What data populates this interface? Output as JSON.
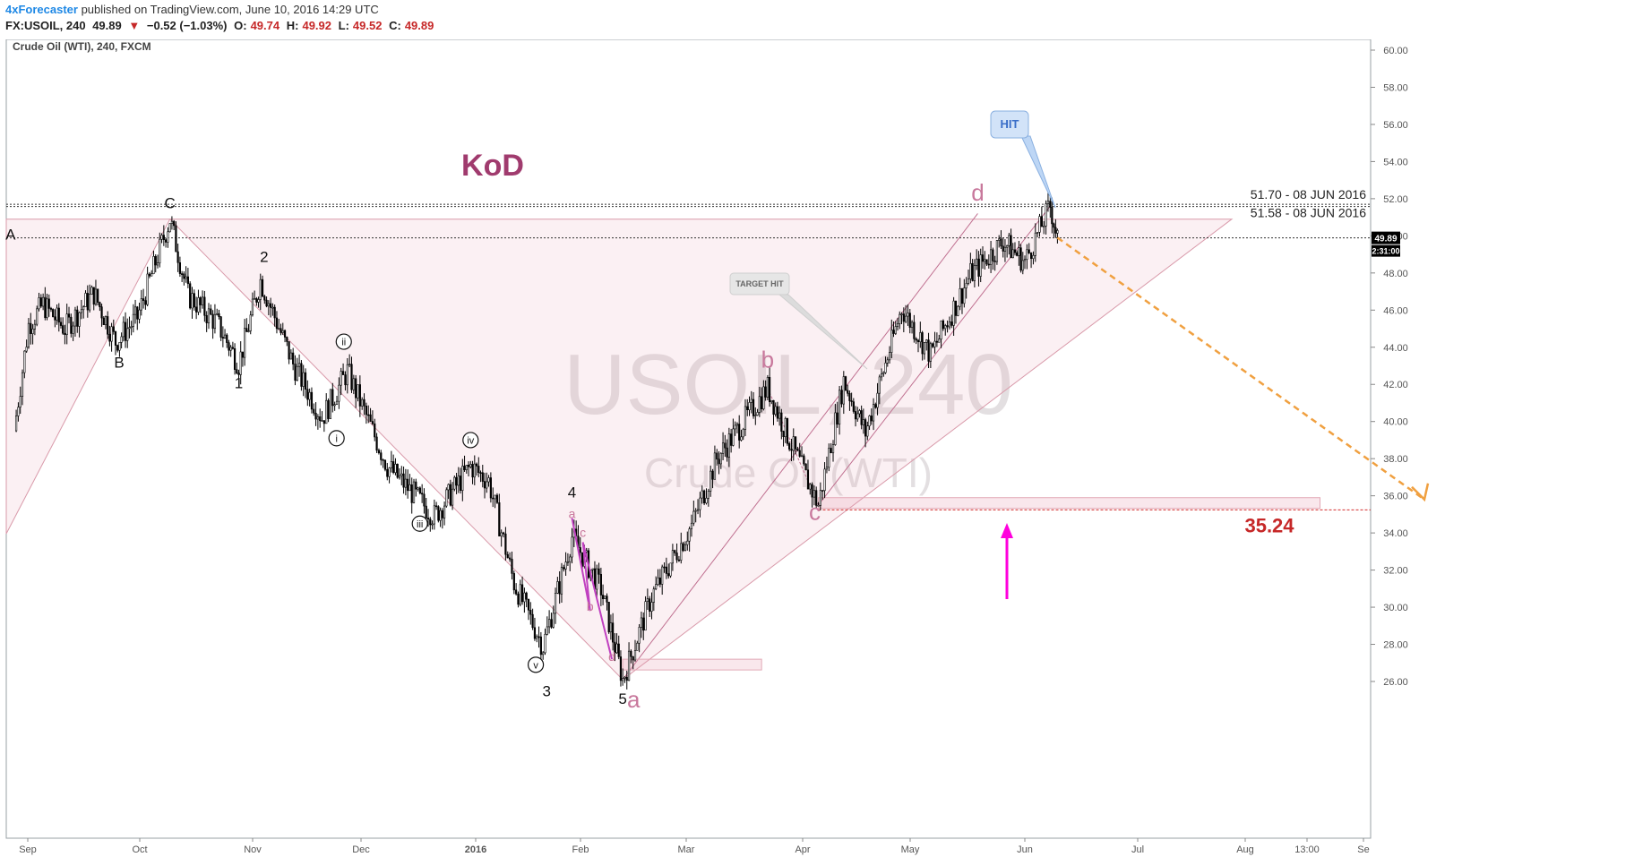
{
  "header": {
    "brand": "4xForecaster",
    "published": "published on TradingView.com, June 10, 2016 14:29 UTC",
    "symbol": "FX:USOIL, 240",
    "last": "49.89",
    "change": "−0.52 (−1.03%)",
    "o_label": "O:",
    "o": "49.74",
    "h_label": "H:",
    "h": "49.92",
    "l_label": "L:",
    "l": "49.52",
    "c_label": "C:",
    "c": "49.89"
  },
  "chart_data": {
    "type": "candlestick",
    "title": "Crude Oil (WTI), 240, FXCM",
    "watermark_symbol": "USOIL, 240",
    "watermark_name": "Crude Oil (WTI)",
    "ylim": [
      25,
      61
    ],
    "y_ticks": [
      "60.00",
      "58.00",
      "56.00",
      "54.00",
      "52.00",
      "50.00",
      "48.00",
      "46.00",
      "44.00",
      "42.00",
      "40.00",
      "38.00",
      "36.00",
      "34.00",
      "32.00",
      "30.00",
      "28.00",
      "26.00"
    ],
    "x_ticks": [
      "Sep",
      "Oct",
      "Nov",
      "Dec",
      "2016",
      "Feb",
      "Mar",
      "Apr",
      "May",
      "Jun",
      "Jul",
      "Aug",
      "13:00",
      "Se"
    ],
    "last_price": "49.89",
    "countdown": "2:31:00",
    "price_path": [
      {
        "t": "2015-08-27",
        "y": 39.5
      },
      {
        "t": "2015-08-31",
        "y": 45.2
      },
      {
        "t": "2015-09-04",
        "y": 46.3
      },
      {
        "t": "2015-09-10",
        "y": 45.0
      },
      {
        "t": "2015-09-18",
        "y": 46.9
      },
      {
        "t": "2015-09-24",
        "y": 44.3
      },
      {
        "t": "2015-09-30",
        "y": 45.6
      },
      {
        "t": "2015-10-09",
        "y": 50.9
      },
      {
        "t": "2015-10-14",
        "y": 46.8
      },
      {
        "t": "2015-10-22",
        "y": 45.3
      },
      {
        "t": "2015-10-28",
        "y": 43.1
      },
      {
        "t": "2015-11-03",
        "y": 47.6
      },
      {
        "t": "2015-11-12",
        "y": 43.1
      },
      {
        "t": "2015-11-20",
        "y": 40.2
      },
      {
        "t": "2015-11-27",
        "y": 42.7
      },
      {
        "t": "2015-12-08",
        "y": 37.6
      },
      {
        "t": "2015-12-21",
        "y": 34.9
      },
      {
        "t": "2015-12-31",
        "y": 37.6
      },
      {
        "t": "2016-01-05",
        "y": 36.8
      },
      {
        "t": "2016-01-12",
        "y": 31.3
      },
      {
        "t": "2016-01-20",
        "y": 27.9
      },
      {
        "t": "2016-01-28",
        "y": 33.8
      },
      {
        "t": "2016-02-05",
        "y": 31.0
      },
      {
        "t": "2016-02-11",
        "y": 26.1
      },
      {
        "t": "2016-02-19",
        "y": 30.6
      },
      {
        "t": "2016-03-01",
        "y": 34.4
      },
      {
        "t": "2016-03-08",
        "y": 38.0
      },
      {
        "t": "2016-03-22",
        "y": 41.8
      },
      {
        "t": "2016-03-28",
        "y": 39.0
      },
      {
        "t": "2016-04-05",
        "y": 35.5
      },
      {
        "t": "2016-04-12",
        "y": 42.2
      },
      {
        "t": "2016-04-18",
        "y": 39.4
      },
      {
        "t": "2016-04-28",
        "y": 46.1
      },
      {
        "t": "2016-05-06",
        "y": 43.6
      },
      {
        "t": "2016-05-17",
        "y": 47.9
      },
      {
        "t": "2016-05-26",
        "y": 49.7
      },
      {
        "t": "2016-06-01",
        "y": 48.6
      },
      {
        "t": "2016-06-08",
        "y": 51.6
      },
      {
        "t": "2016-06-10",
        "y": 49.9
      }
    ],
    "levels": [
      {
        "label": "51.70 - 08 JUN 2016",
        "y": 51.7
      },
      {
        "label": "51.58 - 08 JUN 2016",
        "y": 51.58
      }
    ],
    "target_level": {
      "label": "35.24",
      "y": 35.24
    },
    "annotations": {
      "kod": "KoD",
      "hit": "HIT",
      "target_hit": "TARGET HIT",
      "wave_labels": [
        {
          "text": "A",
          "t": "2015-08-26",
          "y": 49.8
        },
        {
          "text": "B",
          "t": "2015-09-25",
          "y": 42.9
        },
        {
          "text": "C",
          "t": "2015-10-09",
          "y": 51.5
        },
        {
          "text": "1",
          "t": "2015-10-28",
          "y": 41.8
        },
        {
          "text": "2",
          "t": "2015-11-04",
          "y": 48.6
        },
        {
          "text": "3",
          "t": "2016-01-21",
          "y": 25.2
        },
        {
          "text": "4",
          "t": "2016-01-28",
          "y": 35.9
        },
        {
          "text": "5",
          "t": "2016-02-11",
          "y": 24.8
        }
      ],
      "circled_labels": [
        {
          "text": "i",
          "t": "2015-11-24",
          "y": 39.1
        },
        {
          "text": "ii",
          "t": "2015-11-26",
          "y": 44.3
        },
        {
          "text": "iii",
          "t": "2015-12-17",
          "y": 34.5
        },
        {
          "text": "iv",
          "t": "2015-12-31",
          "y": 39.0
        },
        {
          "text": "v",
          "t": "2016-01-18",
          "y": 26.9
        }
      ],
      "pink_labels": [
        {
          "text": "a",
          "t": "2016-01-28",
          "y": 34.8,
          "size": "small"
        },
        {
          "text": "c",
          "t": "2016-01-31",
          "y": 33.8,
          "size": "small"
        },
        {
          "text": "b",
          "t": "2016-02-02",
          "y": 29.8,
          "size": "small"
        },
        {
          "text": "d",
          "t": "2016-02-08",
          "y": 27.1,
          "size": "small"
        },
        {
          "text": "a",
          "t": "2016-02-14",
          "y": 24.6,
          "size": "large"
        },
        {
          "text": "b",
          "t": "2016-03-22",
          "y": 42.9,
          "size": "large"
        },
        {
          "text": "c",
          "t": "2016-04-04",
          "y": 34.7,
          "size": "large"
        },
        {
          "text": "d",
          "t": "2016-05-19",
          "y": 51.9,
          "size": "large"
        }
      ]
    }
  }
}
